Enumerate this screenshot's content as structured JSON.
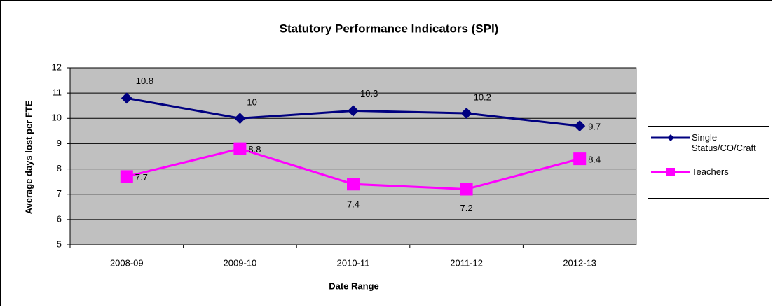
{
  "chart_data": {
    "type": "line",
    "title": "Statutory Performance Indicators (SPI)",
    "x_label": "Date Range",
    "y_label": "Average days lost per FTE",
    "categories": [
      "2008-09",
      "2009-10",
      "2010-11",
      "2011-12",
      "2012-13"
    ],
    "series": [
      {
        "name": "Single Status/CO/Craft",
        "color": "#000080",
        "marker": "diamond",
        "values": [
          10.8,
          10,
          10.3,
          10.2,
          9.7
        ]
      },
      {
        "name": "Teachers",
        "color": "#ff00ff",
        "marker": "square",
        "values": [
          7.7,
          8.8,
          7.4,
          7.2,
          8.4
        ]
      }
    ],
    "ylim": [
      5,
      12
    ],
    "yticks": [
      5,
      6,
      7,
      8,
      9,
      10,
      11,
      12
    ],
    "grid": true,
    "legend": "right",
    "plot_background": "#c0c0c0"
  }
}
